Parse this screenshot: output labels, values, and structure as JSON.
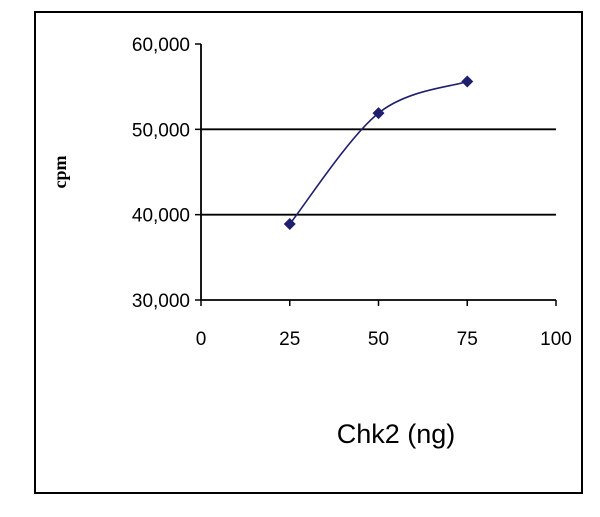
{
  "chart_data": {
    "type": "line",
    "xlabel": "Chk2 (ng)",
    "ylabel": "cpm",
    "xlim": [
      0,
      100
    ],
    "ylim": [
      30000,
      60000
    ],
    "x_ticks": [
      "0",
      "25",
      "50",
      "75",
      "100"
    ],
    "y_ticks": [
      "30,000",
      "40,000",
      "50,000",
      "60,000"
    ],
    "gridlines_y": [
      40000,
      50000
    ],
    "series": [
      {
        "x": [
          25,
          50,
          75
        ],
        "y": [
          38900,
          51900,
          55600
        ],
        "color": "#1f1f6e"
      }
    ]
  }
}
